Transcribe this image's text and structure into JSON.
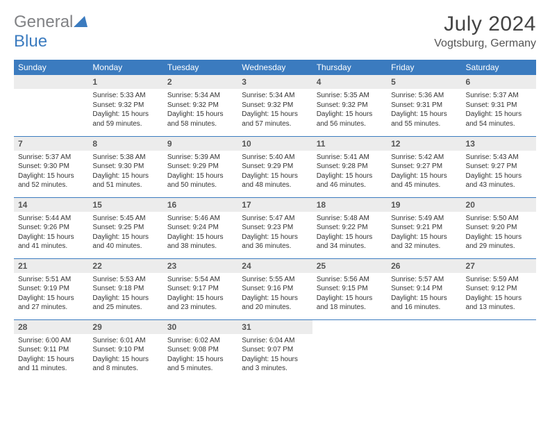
{
  "logo": {
    "text1": "General",
    "text2": "Blue"
  },
  "title": "July 2024",
  "location": "Vogtsburg, Germany",
  "style": {
    "header_bg": "#3b7bbf",
    "header_fg": "#ffffff",
    "daynum_bg": "#ececec",
    "daynum_fg": "#555555",
    "border_color": "#3b7bbf",
    "body_font_size": 10,
    "header_font_size": 12,
    "title_font_size": 30,
    "location_font_size": 16
  },
  "weekdays": [
    "Sunday",
    "Monday",
    "Tuesday",
    "Wednesday",
    "Thursday",
    "Friday",
    "Saturday"
  ],
  "weeks": [
    [
      null,
      {
        "n": "1",
        "sr": "5:33 AM",
        "ss": "9:32 PM",
        "dl": "15 hours and 59 minutes."
      },
      {
        "n": "2",
        "sr": "5:34 AM",
        "ss": "9:32 PM",
        "dl": "15 hours and 58 minutes."
      },
      {
        "n": "3",
        "sr": "5:34 AM",
        "ss": "9:32 PM",
        "dl": "15 hours and 57 minutes."
      },
      {
        "n": "4",
        "sr": "5:35 AM",
        "ss": "9:32 PM",
        "dl": "15 hours and 56 minutes."
      },
      {
        "n": "5",
        "sr": "5:36 AM",
        "ss": "9:31 PM",
        "dl": "15 hours and 55 minutes."
      },
      {
        "n": "6",
        "sr": "5:37 AM",
        "ss": "9:31 PM",
        "dl": "15 hours and 54 minutes."
      }
    ],
    [
      {
        "n": "7",
        "sr": "5:37 AM",
        "ss": "9:30 PM",
        "dl": "15 hours and 52 minutes."
      },
      {
        "n": "8",
        "sr": "5:38 AM",
        "ss": "9:30 PM",
        "dl": "15 hours and 51 minutes."
      },
      {
        "n": "9",
        "sr": "5:39 AM",
        "ss": "9:29 PM",
        "dl": "15 hours and 50 minutes."
      },
      {
        "n": "10",
        "sr": "5:40 AM",
        "ss": "9:29 PM",
        "dl": "15 hours and 48 minutes."
      },
      {
        "n": "11",
        "sr": "5:41 AM",
        "ss": "9:28 PM",
        "dl": "15 hours and 46 minutes."
      },
      {
        "n": "12",
        "sr": "5:42 AM",
        "ss": "9:27 PM",
        "dl": "15 hours and 45 minutes."
      },
      {
        "n": "13",
        "sr": "5:43 AM",
        "ss": "9:27 PM",
        "dl": "15 hours and 43 minutes."
      }
    ],
    [
      {
        "n": "14",
        "sr": "5:44 AM",
        "ss": "9:26 PM",
        "dl": "15 hours and 41 minutes."
      },
      {
        "n": "15",
        "sr": "5:45 AM",
        "ss": "9:25 PM",
        "dl": "15 hours and 40 minutes."
      },
      {
        "n": "16",
        "sr": "5:46 AM",
        "ss": "9:24 PM",
        "dl": "15 hours and 38 minutes."
      },
      {
        "n": "17",
        "sr": "5:47 AM",
        "ss": "9:23 PM",
        "dl": "15 hours and 36 minutes."
      },
      {
        "n": "18",
        "sr": "5:48 AM",
        "ss": "9:22 PM",
        "dl": "15 hours and 34 minutes."
      },
      {
        "n": "19",
        "sr": "5:49 AM",
        "ss": "9:21 PM",
        "dl": "15 hours and 32 minutes."
      },
      {
        "n": "20",
        "sr": "5:50 AM",
        "ss": "9:20 PM",
        "dl": "15 hours and 29 minutes."
      }
    ],
    [
      {
        "n": "21",
        "sr": "5:51 AM",
        "ss": "9:19 PM",
        "dl": "15 hours and 27 minutes."
      },
      {
        "n": "22",
        "sr": "5:53 AM",
        "ss": "9:18 PM",
        "dl": "15 hours and 25 minutes."
      },
      {
        "n": "23",
        "sr": "5:54 AM",
        "ss": "9:17 PM",
        "dl": "15 hours and 23 minutes."
      },
      {
        "n": "24",
        "sr": "5:55 AM",
        "ss": "9:16 PM",
        "dl": "15 hours and 20 minutes."
      },
      {
        "n": "25",
        "sr": "5:56 AM",
        "ss": "9:15 PM",
        "dl": "15 hours and 18 minutes."
      },
      {
        "n": "26",
        "sr": "5:57 AM",
        "ss": "9:14 PM",
        "dl": "15 hours and 16 minutes."
      },
      {
        "n": "27",
        "sr": "5:59 AM",
        "ss": "9:12 PM",
        "dl": "15 hours and 13 minutes."
      }
    ],
    [
      {
        "n": "28",
        "sr": "6:00 AM",
        "ss": "9:11 PM",
        "dl": "15 hours and 11 minutes."
      },
      {
        "n": "29",
        "sr": "6:01 AM",
        "ss": "9:10 PM",
        "dl": "15 hours and 8 minutes."
      },
      {
        "n": "30",
        "sr": "6:02 AM",
        "ss": "9:08 PM",
        "dl": "15 hours and 5 minutes."
      },
      {
        "n": "31",
        "sr": "6:04 AM",
        "ss": "9:07 PM",
        "dl": "15 hours and 3 minutes."
      },
      null,
      null,
      null
    ]
  ],
  "labels": {
    "sunrise": "Sunrise:",
    "sunset": "Sunset:",
    "daylight": "Daylight:"
  }
}
